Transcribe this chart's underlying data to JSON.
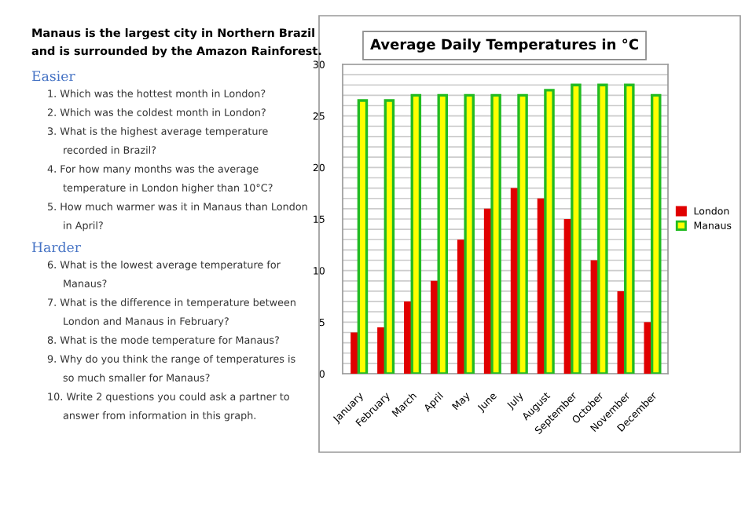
{
  "chart_data": {
    "type": "bar",
    "title": "Average Daily Temperatures in °C",
    "categories": [
      "January",
      "February",
      "March",
      "April",
      "May",
      "June",
      "July",
      "August",
      "September",
      "October",
      "November",
      "December"
    ],
    "series": [
      {
        "name": "London",
        "color": "#e00000",
        "values": [
          4,
          4.5,
          7,
          9,
          13,
          16,
          18,
          17,
          15,
          11,
          8,
          5
        ]
      },
      {
        "name": "Manaus",
        "color": "#ffff00",
        "values": [
          26.5,
          26.5,
          27,
          27,
          27,
          27,
          27,
          27.5,
          28,
          28,
          28,
          27
        ]
      }
    ],
    "ylim": [
      0,
      30
    ],
    "yticks": [
      0,
      {
        "value": 1,
        "label": null
      },
      {
        "value": 2,
        "label": null
      },
      {
        "value": 3,
        "label": null
      },
      {
        "value": 4,
        "label": null
      },
      5,
      {
        "value": 6,
        "label": null
      },
      {
        "value": 7,
        "label": null
      },
      {
        "value": 8,
        "label": null
      },
      {
        "value": 9,
        "label": null
      },
      10,
      {
        "value": 11,
        "label": null
      },
      {
        "value": 12,
        "label": null
      },
      {
        "value": 13,
        "label": null
      },
      {
        "value": 14,
        "label": null
      },
      15,
      {
        "value": 16,
        "label": null
      },
      {
        "value": 17,
        "label": null
      },
      {
        "value": 18,
        "label": null
      },
      {
        "value": 19,
        "label": null
      },
      20,
      {
        "value": 21,
        "label": null
      },
      {
        "value": 22,
        "label": null
      },
      {
        "value": 23,
        "label": null
      },
      {
        "value": 24,
        "label": null
      },
      25,
      {
        "value": 26,
        "label": null
      },
      {
        "value": 27,
        "label": null
      },
      {
        "value": 28,
        "label": null
      },
      {
        "value": 29,
        "label": null
      },
      30
    ],
    "grid": "y",
    "legend": "right",
    "annotations": [
      "Manaus is the largest city in Northern Brazil and is surrounded by the Amazon Rainforest.",
      "Easier",
      "1. Which was the hottest month in London?",
      "2. Which was the coldest month in London?",
      "3. What is the highest average temperature recorded in Brazil?",
      "4. For how many months was the average temperature in London higher than 10°C?",
      "5. How much warmer was it in Manaus than London in April?",
      "Harder",
      "6. What is the lowest average temperature for Manaus?",
      "7. What is the difference in temperature between London and Manaus in February?",
      "8. What is the mode temperature for Manaus?",
      "9. Why do you think the range of temperatures is so much smaller for Manaus?",
      "10. Write 2 questions you could ask a partner to answer from information in this graph."
    ]
  }
}
